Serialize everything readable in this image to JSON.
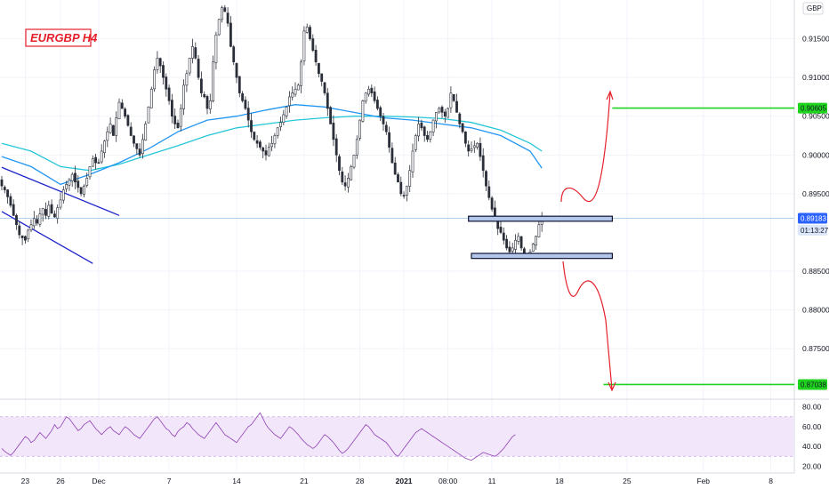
{
  "chart_data": {
    "type": "candlestick",
    "title": "EURGBP H4",
    "currency": "GBP",
    "price_axis": {
      "range": [
        0.8686,
        0.92
      ],
      "ticks": [
        {
          "label": "0.91500",
          "value": 0.915
        },
        {
          "label": "0.91000",
          "value": 0.91
        },
        {
          "label": "0.90500",
          "value": 0.905
        },
        {
          "label": "0.90000",
          "value": 0.9
        },
        {
          "label": "0.89500",
          "value": 0.895
        },
        {
          "label": "0.88500",
          "value": 0.885
        },
        {
          "label": "0.88000",
          "value": 0.88
        },
        {
          "label": "0.87500",
          "value": 0.875
        }
      ]
    },
    "time_axis": {
      "labels": [
        {
          "label": "23",
          "bar": 8,
          "bold": false
        },
        {
          "label": "26",
          "bar": 20,
          "bold": false
        },
        {
          "label": "Dec",
          "bar": 33,
          "bold": false
        },
        {
          "label": "7",
          "bar": 57,
          "bold": false
        },
        {
          "label": "14",
          "bar": 80,
          "bold": false
        },
        {
          "label": "21",
          "bar": 103,
          "bold": false
        },
        {
          "label": "28",
          "bar": 122,
          "bold": false
        },
        {
          "label": "2021",
          "bar": 137,
          "bold": true
        },
        {
          "label": "08:00",
          "bar": 152,
          "bold": false
        },
        {
          "label": "11",
          "bar": 167,
          "bold": false
        },
        {
          "label": "18",
          "bar": 190,
          "bold": false
        },
        {
          "label": "25",
          "bar": 213,
          "bold": false
        },
        {
          "label": "Feb",
          "bar": 239,
          "bold": false
        },
        {
          "label": "8",
          "bar": 262,
          "bold": false
        }
      ]
    },
    "price_tags": [
      {
        "label": "0.90605",
        "value": 0.90605,
        "style": "green"
      },
      {
        "label": "0.89183",
        "value": 0.89183,
        "style": "blue"
      },
      {
        "label": "01:13:27",
        "value": 0.8903,
        "style": "blue-light"
      },
      {
        "label": "0.87038",
        "value": 0.87038,
        "style": "green"
      }
    ],
    "current_price": 0.89183,
    "levels": [
      {
        "value": 0.90605,
        "color": "#1fd31f",
        "from_bar": 208
      },
      {
        "value": 0.87038,
        "color": "#1fd31f",
        "from_bar": 205
      }
    ],
    "zones": [
      {
        "top": 0.8921,
        "bottom": 0.89145,
        "from_bar": 159,
        "to_bar": 208
      },
      {
        "top": 0.8873,
        "bottom": 0.88665,
        "from_bar": 160,
        "to_bar": 208
      }
    ],
    "candle_closes": [
      0.896,
      0.8955,
      0.8946,
      0.8935,
      0.8922,
      0.891,
      0.8897,
      0.8893,
      0.889,
      0.8903,
      0.891,
      0.8918,
      0.8912,
      0.8924,
      0.8931,
      0.8922,
      0.8935,
      0.8925,
      0.892,
      0.8932,
      0.8942,
      0.8955,
      0.8962,
      0.8968,
      0.8975,
      0.8965,
      0.8958,
      0.895,
      0.896,
      0.897,
      0.8985,
      0.8995,
      0.899,
      0.899,
      0.9005,
      0.9018,
      0.903,
      0.904,
      0.9025,
      0.9048,
      0.9068,
      0.906,
      0.905,
      0.9038,
      0.9025,
      0.9015,
      0.9008,
      0.9,
      0.902,
      0.904,
      0.9062,
      0.9085,
      0.911,
      0.9125,
      0.9115,
      0.91,
      0.9085,
      0.907,
      0.905,
      0.904,
      0.9035,
      0.906,
      0.909,
      0.9105,
      0.9125,
      0.914,
      0.9125,
      0.91,
      0.908,
      0.9075,
      0.906,
      0.907,
      0.912,
      0.9155,
      0.9175,
      0.919,
      0.9185,
      0.917,
      0.914,
      0.912,
      0.91,
      0.908,
      0.907,
      0.906,
      0.9045,
      0.903,
      0.902,
      0.9015,
      0.901,
      0.9005,
      0.9,
      0.901,
      0.9015,
      0.9025,
      0.9035,
      0.9042,
      0.9052,
      0.9062,
      0.9075,
      0.908,
      0.9085,
      0.909,
      0.912,
      0.916,
      0.9165,
      0.915,
      0.9135,
      0.912,
      0.9105,
      0.9095,
      0.908,
      0.906,
      0.904,
      0.902,
      0.9,
      0.898,
      0.8965,
      0.896,
      0.897,
      0.8985,
      0.9,
      0.902,
      0.9045,
      0.907,
      0.908,
      0.9085,
      0.908,
      0.907,
      0.906,
      0.905,
      0.904,
      0.903,
      0.901,
      0.899,
      0.8975,
      0.8965,
      0.895,
      0.8948,
      0.896,
      0.898,
      0.9005,
      0.9025,
      0.904,
      0.9035,
      0.9025,
      0.902,
      0.903,
      0.9045,
      0.9055,
      0.906,
      0.9055,
      0.905,
      0.906,
      0.908,
      0.907,
      0.9055,
      0.904,
      0.903,
      0.9015,
      0.9005,
      0.9008,
      0.9012,
      0.9015,
      0.8998,
      0.898,
      0.896,
      0.8945,
      0.893,
      0.8915,
      0.8905,
      0.89,
      0.889,
      0.888,
      0.8875,
      0.888,
      0.889,
      0.8895,
      0.888,
      0.8872,
      0.887,
      0.8875,
      0.8885,
      0.8895,
      0.891,
      0.8918
    ],
    "ma_fast": {
      "color": "#2196f3",
      "points": [
        [
          0,
          0.8998
        ],
        [
          10,
          0.8985
        ],
        [
          20,
          0.8962
        ],
        [
          30,
          0.8975
        ],
        [
          40,
          0.899
        ],
        [
          50,
          0.9008
        ],
        [
          60,
          0.903
        ],
        [
          70,
          0.9045
        ],
        [
          80,
          0.905
        ],
        [
          90,
          0.9058
        ],
        [
          100,
          0.9065
        ],
        [
          110,
          0.9062
        ],
        [
          120,
          0.9055
        ],
        [
          130,
          0.9048
        ],
        [
          140,
          0.9045
        ],
        [
          150,
          0.904
        ],
        [
          160,
          0.9035
        ],
        [
          170,
          0.9025
        ],
        [
          180,
          0.9005
        ],
        [
          184,
          0.8983
        ]
      ]
    },
    "ma_slow": {
      "color": "#26c6da",
      "points": [
        [
          0,
          0.9015
        ],
        [
          10,
          0.9005
        ],
        [
          20,
          0.8985
        ],
        [
          30,
          0.898
        ],
        [
          40,
          0.8988
        ],
        [
          50,
          0.9
        ],
        [
          60,
          0.9012
        ],
        [
          70,
          0.9025
        ],
        [
          80,
          0.9035
        ],
        [
          90,
          0.904
        ],
        [
          100,
          0.9045
        ],
        [
          110,
          0.9048
        ],
        [
          120,
          0.905
        ],
        [
          130,
          0.905
        ],
        [
          140,
          0.9049
        ],
        [
          150,
          0.9047
        ],
        [
          160,
          0.9042
        ],
        [
          170,
          0.9032
        ],
        [
          180,
          0.9015
        ],
        [
          184,
          0.9005
        ]
      ]
    },
    "trendlines": [
      {
        "from": [
          0,
          0.8984
        ],
        "to": [
          40,
          0.8922
        ],
        "color": "#1d24c9"
      },
      {
        "from": [
          0,
          0.8927
        ],
        "to": [
          31,
          0.886
        ],
        "color": "#1d24c9"
      }
    ],
    "rsi": {
      "range": [
        15,
        85
      ],
      "band_top": 70,
      "band_bottom": 30,
      "ticks": [
        {
          "label": "80.00",
          "value": 80
        },
        {
          "label": "60.00",
          "value": 60
        },
        {
          "label": "40.00",
          "value": 40
        },
        {
          "label": "20.00",
          "value": 20
        }
      ],
      "values": [
        38,
        35,
        33,
        31,
        34,
        38,
        42,
        46,
        50,
        48,
        44,
        46,
        50,
        54,
        51,
        48,
        52,
        56,
        62,
        58,
        60,
        65,
        70,
        68,
        64,
        60,
        56,
        58,
        62,
        64,
        66,
        62,
        58,
        55,
        52,
        55,
        58,
        60,
        56,
        54,
        52,
        56,
        60,
        58,
        55,
        52,
        50,
        48,
        52,
        56,
        60,
        64,
        68,
        70,
        66,
        62,
        58,
        56,
        52,
        50,
        55,
        58,
        60,
        64,
        62,
        58,
        55,
        52,
        50,
        48,
        52,
        56,
        60,
        64,
        60,
        56,
        52,
        50,
        48,
        46,
        44,
        48,
        52,
        56,
        60,
        62,
        66,
        70,
        74,
        68,
        62,
        58,
        55,
        52,
        50,
        48,
        52,
        56,
        60,
        58,
        55,
        52,
        48,
        45,
        42,
        40,
        38,
        40,
        44,
        48,
        52,
        50,
        47,
        44,
        40,
        36,
        33,
        35,
        38,
        42,
        46,
        50,
        54,
        58,
        62,
        60,
        56,
        52,
        50,
        48,
        46,
        44,
        40,
        36,
        32,
        30,
        34,
        38,
        42,
        46,
        50,
        54,
        56,
        58,
        56,
        54,
        52,
        50,
        48,
        46,
        44,
        42,
        40,
        38,
        36,
        34,
        32,
        30,
        28,
        27,
        26,
        28,
        30,
        32,
        34,
        33,
        32,
        31,
        30,
        32,
        35,
        38,
        42,
        46,
        50,
        52
      ]
    }
  }
}
